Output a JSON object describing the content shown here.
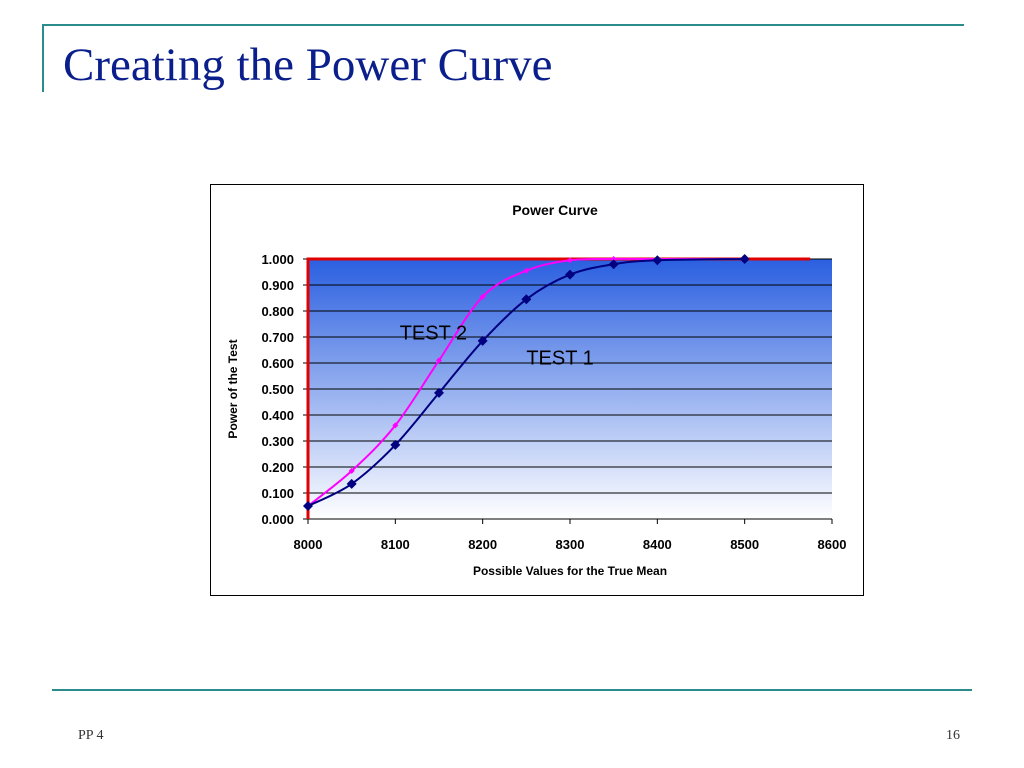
{
  "slide": {
    "title": "Creating the Power Curve",
    "footer_left": "PP 4",
    "page_number": "16"
  },
  "colors": {
    "title": "#0b1f8c",
    "accent_line": "#2a8c8c",
    "plot_gradient_top": "#2a5fe0",
    "plot_gradient_bottom": "#ffffff",
    "critical_region_outline": "#e00000",
    "test1": "#000080",
    "test2": "#ff00ff",
    "gridline": "#000000"
  },
  "icons": {
    "test1_marker": "diamond",
    "test2_marker": "small-diamond"
  },
  "chart_data": {
    "type": "line",
    "title": "Power Curve",
    "xlabel": "Possible Values for the True Mean",
    "ylabel": "Power of the Test",
    "xlim": [
      8000,
      8600
    ],
    "ylim": [
      0,
      1
    ],
    "x_ticks": [
      "8000",
      "8100",
      "8200",
      "8300",
      "8400",
      "8500",
      "8600"
    ],
    "y_ticks": [
      "0.000",
      "0.100",
      "0.200",
      "0.300",
      "0.400",
      "0.500",
      "0.600",
      "0.700",
      "0.800",
      "0.900",
      "1.000"
    ],
    "grid": true,
    "legend": "none",
    "series": [
      {
        "name": "TEST 1",
        "x": [
          8000,
          8050,
          8100,
          8150,
          8200,
          8250,
          8300,
          8350,
          8400,
          8500
        ],
        "values": [
          0.05,
          0.135,
          0.285,
          0.485,
          0.685,
          0.845,
          0.94,
          0.98,
          0.995,
          1.0
        ]
      },
      {
        "name": "TEST 2",
        "x": [
          8000,
          8050,
          8100,
          8150,
          8200,
          8250,
          8300,
          8350,
          8400,
          8500
        ],
        "values": [
          0.05,
          0.185,
          0.36,
          0.61,
          0.855,
          0.955,
          0.995,
          1.0,
          1.0,
          1.0
        ]
      }
    ],
    "annotations": [
      {
        "text": "TEST 2",
        "x": 8105,
        "y": 0.69
      },
      {
        "text": "TEST 1",
        "x": 8250,
        "y": 0.595
      }
    ],
    "critical_region": {
      "x_start": 8000,
      "x_end": 8575,
      "y_top": 1.0
    }
  }
}
